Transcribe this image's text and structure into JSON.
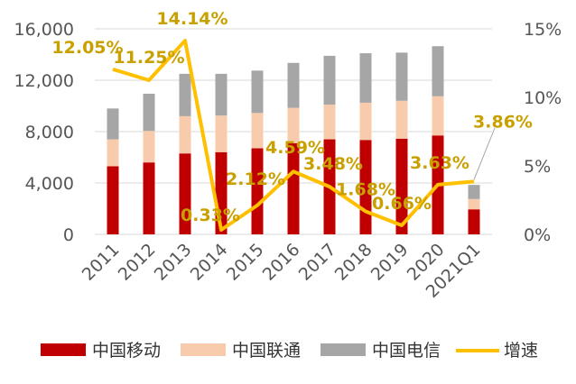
{
  "chart_data": {
    "type": "bar",
    "stacked": true,
    "combo_line": true,
    "categories": [
      "2011",
      "2012",
      "2013",
      "2014",
      "2015",
      "2016",
      "2017",
      "2018",
      "2019",
      "2020",
      "2021Q1"
    ],
    "series": [
      {
        "name": "中国移动",
        "type": "bar",
        "axis": "left",
        "color": "#C00000",
        "values": [
          5300,
          5600,
          6300,
          6400,
          6700,
          7100,
          7400,
          7350,
          7450,
          7700,
          1950
        ]
      },
      {
        "name": "中国联通",
        "type": "bar",
        "axis": "left",
        "color": "#F8CBAD",
        "values": [
          2100,
          2450,
          2900,
          2850,
          2750,
          2750,
          2700,
          2900,
          2950,
          3050,
          800
        ]
      },
      {
        "name": "中国电信",
        "type": "bar",
        "axis": "left",
        "color": "#A6A6A6",
        "values": [
          2400,
          2900,
          3300,
          3250,
          3300,
          3500,
          3800,
          3850,
          3750,
          3900,
          1100
        ]
      },
      {
        "name": "增速",
        "type": "line",
        "axis": "right",
        "color": "#FFC000",
        "values": [
          12.05,
          11.25,
          14.14,
          0.33,
          2.12,
          4.59,
          3.48,
          1.68,
          0.66,
          3.63,
          3.86
        ],
        "labels": [
          "12.05%",
          "11.25%",
          "14.14%",
          "0.33%",
          "2.12%",
          "4.59%",
          "3.48%",
          "1.68%",
          "0.66%",
          "3.63%",
          "3.86%"
        ]
      }
    ],
    "y_left": {
      "ylim": [
        0,
        16000
      ],
      "ticks": [
        "0",
        "4,000",
        "8,000",
        "12,000",
        "16,000"
      ]
    },
    "y_right": {
      "ylim": [
        0,
        15
      ],
      "ticks": [
        "0%",
        "5%",
        "10%",
        "15%"
      ]
    },
    "grid": true,
    "legend_position": "bottom",
    "title": "",
    "xlabel": "",
    "ylabel": ""
  }
}
